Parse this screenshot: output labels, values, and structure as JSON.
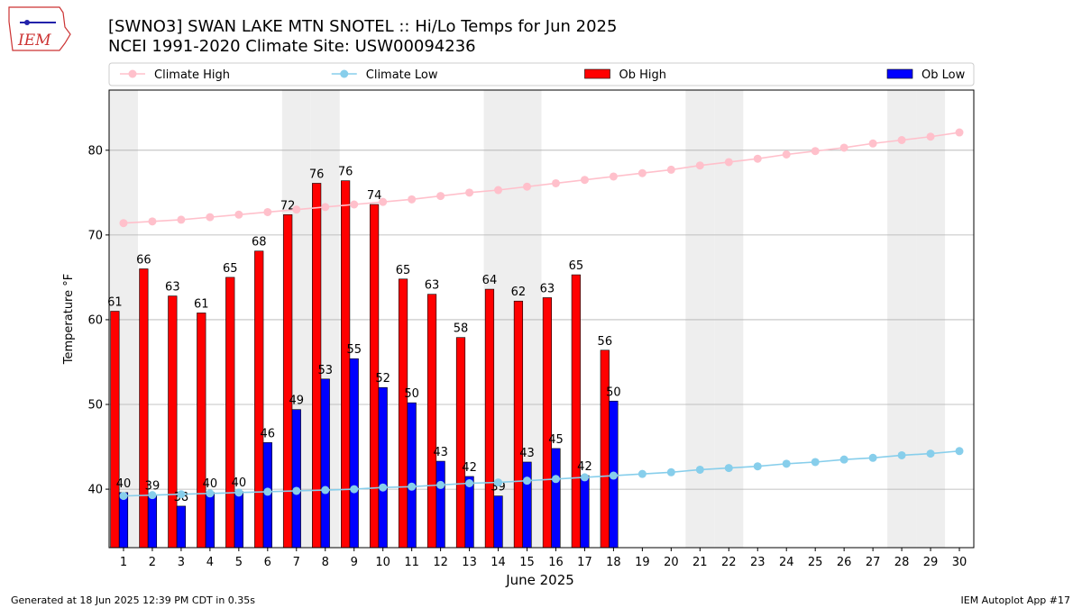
{
  "header": {
    "logo": "IEM"
  },
  "chart_data": {
    "type": "bar",
    "title": "[SWNO3] SWAN LAKE MTN SNOTEL :: Hi/Lo Temps for Jun 2025",
    "subtitle": "NCEI 1991-2020 Climate Site: USW00094236",
    "xlabel": "June 2025",
    "ylabel": "Temperature °F",
    "x": [
      1,
      2,
      3,
      4,
      5,
      6,
      7,
      8,
      9,
      10,
      11,
      12,
      13,
      14,
      15,
      16,
      17,
      18,
      19,
      20,
      21,
      22,
      23,
      24,
      25,
      26,
      27,
      28,
      29,
      30
    ],
    "xlim": [
      0.5,
      30.5
    ],
    "xticks": [
      1,
      2,
      3,
      4,
      5,
      6,
      7,
      8,
      9,
      10,
      11,
      12,
      13,
      14,
      15,
      16,
      17,
      18,
      19,
      20,
      21,
      22,
      23,
      24,
      25,
      26,
      27,
      28,
      29,
      30
    ],
    "ylim": [
      33.1,
      87.1
    ],
    "yticks": [
      40,
      50,
      60,
      70,
      80
    ],
    "grid": true,
    "shaded_x": [
      1,
      7,
      8,
      14,
      15,
      21,
      22,
      28,
      29
    ],
    "legend": "top",
    "series": [
      {
        "name": "Climate High",
        "type": "line",
        "color": "#ffc0cb",
        "values": [
          71.4,
          71.6,
          71.8,
          72.1,
          72.4,
          72.7,
          73.0,
          73.3,
          73.6,
          73.9,
          74.2,
          74.6,
          75.0,
          75.3,
          75.7,
          76.1,
          76.5,
          76.9,
          77.3,
          77.7,
          78.2,
          78.6,
          79.0,
          79.5,
          79.9,
          80.3,
          80.8,
          81.2,
          81.6,
          82.1
        ]
      },
      {
        "name": "Climate Low",
        "type": "line",
        "color": "#87ceeb",
        "values": [
          39.2,
          39.3,
          39.4,
          39.5,
          39.6,
          39.7,
          39.8,
          39.9,
          40.0,
          40.2,
          40.3,
          40.5,
          40.7,
          40.8,
          41.0,
          41.2,
          41.4,
          41.6,
          41.8,
          42.0,
          42.3,
          42.5,
          42.7,
          43.0,
          43.2,
          43.5,
          43.7,
          44.0,
          44.2,
          44.5
        ]
      },
      {
        "name": "Ob High",
        "type": "bar",
        "color": "#ff0000",
        "values": [
          61.0,
          66.0,
          62.8,
          60.8,
          65.0,
          68.1,
          72.4,
          76.1,
          76.4,
          73.6,
          64.8,
          63.0,
          57.9,
          63.6,
          62.2,
          62.6,
          65.3,
          56.4,
          null,
          null,
          null,
          null,
          null,
          null,
          null,
          null,
          null,
          null,
          null,
          null
        ],
        "value_labels": [
          "61",
          "66",
          "63",
          "61",
          "65",
          "68",
          "72",
          "76",
          "76",
          "74",
          "65",
          "63",
          "58",
          "64",
          "62",
          "63",
          "65",
          "56",
          null,
          null,
          null,
          null,
          null,
          null,
          null,
          null,
          null,
          null,
          null,
          null
        ]
      },
      {
        "name": "Ob Low",
        "type": "bar",
        "color": "#0000ff",
        "values": [
          39.6,
          39.3,
          38.0,
          39.6,
          39.7,
          45.5,
          49.4,
          53.0,
          55.4,
          52.0,
          50.2,
          43.3,
          41.5,
          39.2,
          43.2,
          44.8,
          41.6,
          50.4,
          null,
          null,
          null,
          null,
          null,
          null,
          null,
          null,
          null,
          null,
          null,
          null
        ],
        "value_labels": [
          "40",
          "39",
          "38",
          "40",
          "40",
          "46",
          "49",
          "53",
          "55",
          "52",
          "50",
          "43",
          "42",
          "39",
          "43",
          "45",
          "42",
          "50",
          null,
          null,
          null,
          null,
          null,
          null,
          null,
          null,
          null,
          null,
          null,
          null
        ]
      }
    ]
  },
  "footer": {
    "left": "Generated at 18 Jun 2025 12:39 PM CDT in 0.35s",
    "right": "IEM Autoplot App #17"
  }
}
